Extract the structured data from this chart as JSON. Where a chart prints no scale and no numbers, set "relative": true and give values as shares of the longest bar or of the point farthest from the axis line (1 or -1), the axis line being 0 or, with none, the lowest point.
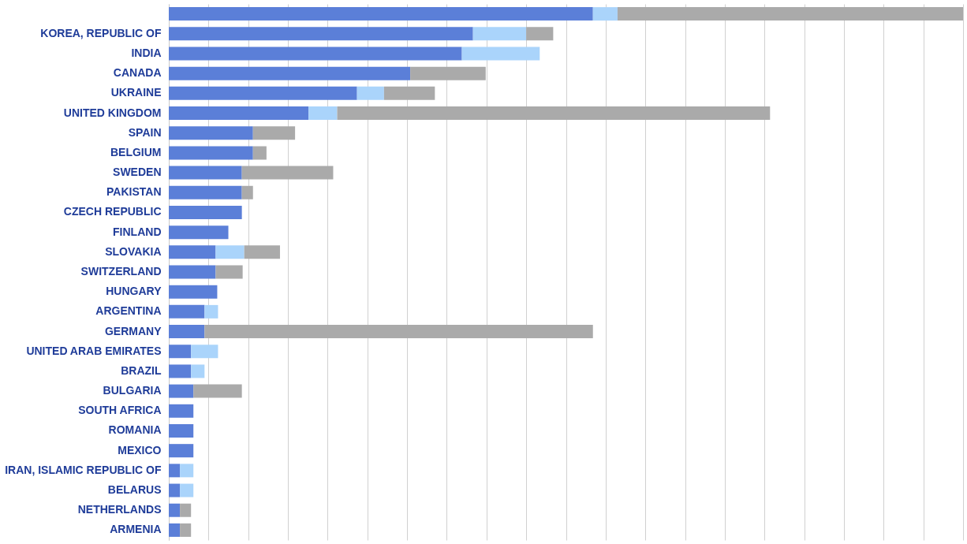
{
  "chart_data": {
    "type": "bar",
    "orientation": "horizontal",
    "stacked": true,
    "relative": true,
    "grid": "x",
    "legend": false,
    "categories": [
      null,
      "KOREA, REPUBLIC OF",
      "INDIA",
      "CANADA",
      "UKRAINE",
      "UNITED KINGDOM",
      "SPAIN",
      "BELGIUM",
      "SWEDEN",
      "PAKISTAN",
      "CZECH REPUBLIC",
      "FINLAND",
      "SLOVAKIA",
      "SWITZERLAND",
      "HUNGARY",
      "ARGENTINA",
      "GERMANY",
      "UNITED ARAB EMIRATES",
      "BRAZIL",
      "BULGARIA",
      "SOUTH AFRICA",
      "ROMANIA",
      "MEXICO",
      "IRAN, ISLAMIC REPUBLIC OF",
      "BELARUS",
      "NETHERLANDS",
      "ARMENIA"
    ],
    "series": [
      {
        "color": "#5b7fd8",
        "values": [
          0.534,
          0.383,
          0.369,
          0.304,
          0.237,
          0.176,
          0.106,
          0.106,
          0.092,
          0.092,
          0.092,
          0.075,
          0.059,
          0.059,
          0.061,
          0.045,
          0.045,
          0.028,
          0.028,
          0.031,
          0.031,
          0.031,
          0.031,
          0.014,
          0.014,
          0.014,
          0.014
        ]
      },
      {
        "color": "#aad4fb",
        "values": [
          0.031,
          0.067,
          0.098,
          0,
          0.034,
          0.036,
          0,
          0,
          0,
          0,
          0,
          0,
          0.036,
          0,
          0,
          0.017,
          0,
          0.034,
          0.017,
          0,
          0,
          0,
          0,
          0.017,
          0.017,
          0,
          0
        ]
      },
      {
        "color": "#aaaaaa",
        "values": [
          0.435,
          0.034,
          0,
          0.095,
          0.064,
          0.545,
          0.053,
          0.017,
          0.115,
          0.014,
          0,
          0,
          0.045,
          0.034,
          0,
          0,
          0.489,
          0,
          0,
          0.061,
          0,
          0,
          0,
          0,
          0,
          0.014,
          0.014
        ]
      }
    ]
  }
}
